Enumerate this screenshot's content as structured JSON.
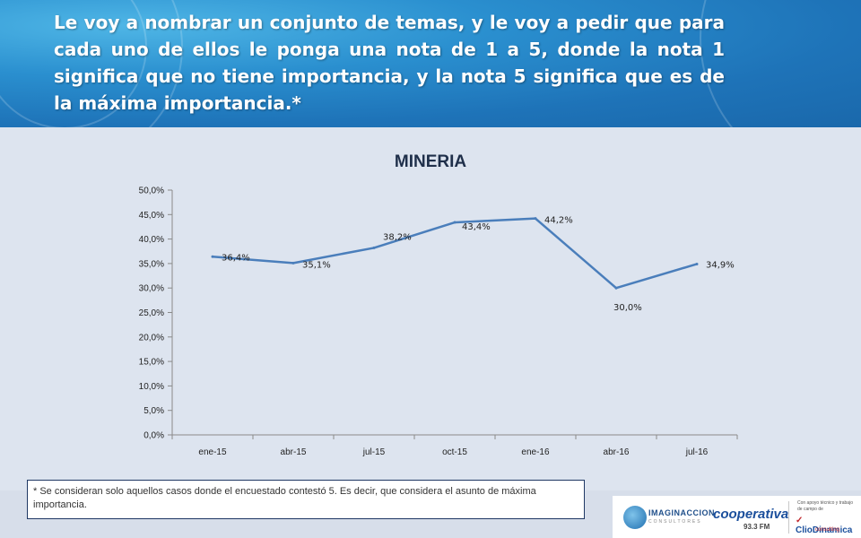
{
  "header": {
    "question": "Le voy a nombrar un conjunto de temas, y le voy a pedir que para cada uno de ellos le ponga una nota de 1 a 5, donde la nota 1 significa que no tiene importancia, y la nota 5 significa que es de la máxima importancia.*"
  },
  "chart_data": {
    "type": "line",
    "title": "MINERIA",
    "categories": [
      "ene-15",
      "abr-15",
      "jul-15",
      "oct-15",
      "ene-16",
      "abr-16",
      "jul-16"
    ],
    "series": [
      {
        "values": [
          36.4,
          35.1,
          38.2,
          43.4,
          44.2,
          30.0,
          34.9
        ],
        "labels": [
          "36,4%",
          "35,1%",
          "38,2%",
          "43,4%",
          "44,2%",
          "30,0%",
          "34,9%"
        ]
      }
    ],
    "ylim": [
      0,
      50
    ],
    "yticks": [
      "0,0%",
      "5,0%",
      "10,0%",
      "15,0%",
      "20,0%",
      "25,0%",
      "30,0%",
      "35,0%",
      "40,0%",
      "45,0%",
      "50,0%"
    ],
    "xlabel": "",
    "ylabel": "",
    "grid": false,
    "legend": "none",
    "line_color": "#4a7ebb"
  },
  "footnote": "* Se consideran solo aquellos casos donde el encuestado contestó 5. Es decir, que considera el asunto de máxima importancia.",
  "logos": {
    "imaginaccion": "IMAGINACCION",
    "imaginaccion_sub": "CONSULTORES",
    "cooperativa": "cooperativa",
    "cooperativa_freq": "93.3 FM",
    "support_text": "Con apoyo técnico y trabajo de campo de",
    "clio": "ClioDinamica",
    "clio_sub": "consulting"
  }
}
